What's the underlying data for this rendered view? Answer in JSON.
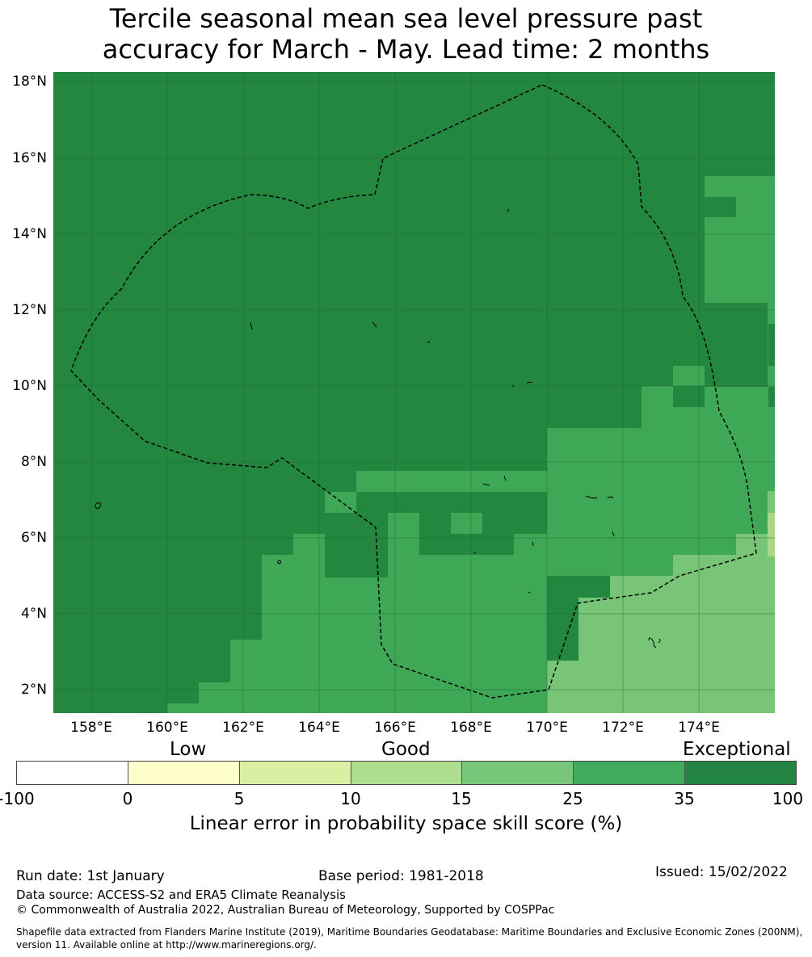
{
  "title_line1": "Tercile seasonal mean sea level pressure past",
  "title_line2": "accuracy for March - May. Lead time: 2 months",
  "map": {
    "lat_labels": [
      "18°N",
      "16°N",
      "14°N",
      "12°N",
      "10°N",
      "8°N",
      "6°N",
      "4°N",
      "2°N"
    ],
    "lon_labels": [
      "158°E",
      "160°E",
      "162°E",
      "164°E",
      "166°E",
      "168°E",
      "170°E",
      "172°E",
      "174°E"
    ],
    "colors": {
      "exceptional": "#24873f",
      "good35": "#3ea857",
      "mid25": "#78c578",
      "land": "#000000"
    }
  },
  "colorbar": {
    "words": {
      "low": "Low",
      "good": "Good",
      "exceptional": "Exceptional"
    },
    "ticks": [
      "-100",
      "0",
      "5",
      "10",
      "15",
      "25",
      "35",
      "100"
    ],
    "colors": [
      "#ffffff",
      "#ffffcc",
      "#d9f0a3",
      "#addd8e",
      "#78c679",
      "#41ab5d",
      "#238443"
    ],
    "label": "Linear error in probability space skill score (%)"
  },
  "footer": {
    "run_date": "Run date: 1st January",
    "base_period": "Base period: 1981-2018",
    "issued": "Issued: 15/02/2022",
    "data_source": "Data source: ACCESS-S2 and ERA5 Climate Reanalysis",
    "copyright": "© Commonwealth of Australia 2022, Australian Bureau of Meteorology, Supported by COSPPac",
    "shapefile_line1": "Shapefile data extracted from Flanders Marine Institute (2019), Maritime Boundaries Geodatabase: Maritime Boundaries and Exclusive Economic Zones (200NM),",
    "shapefile_line2": "version 11. Available online at http://www.marineregions.org/."
  }
}
